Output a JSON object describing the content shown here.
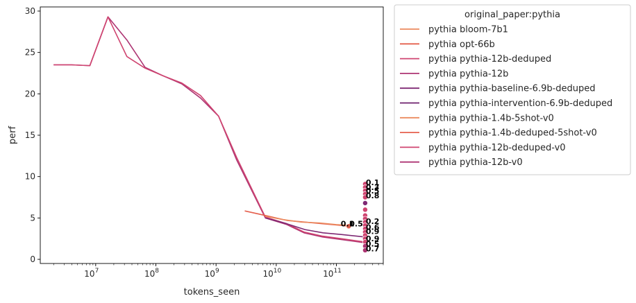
{
  "chart_data": {
    "type": "line",
    "xlabel": "tokens_seen",
    "ylabel": "perf",
    "xscale": "log",
    "xlim": [
      1200000.0,
      600000000000.0
    ],
    "ylim": [
      -0.5,
      30.5
    ],
    "yticks": [
      0,
      5,
      10,
      15,
      20,
      25,
      30
    ],
    "xticks": [
      {
        "value": 10000000.0,
        "base": "10",
        "exp": "7"
      },
      {
        "value": 100000000.0,
        "base": "10",
        "exp": "8"
      },
      {
        "value": 1000000000.0,
        "base": "10",
        "exp": "9"
      },
      {
        "value": 10000000000.0,
        "base": "10",
        "exp": "10"
      },
      {
        "value": 100000000000.0,
        "base": "10",
        "exp": "11"
      }
    ],
    "grid": false,
    "legend": {
      "title": "original_paper:pythia",
      "placement": "outside-right",
      "entries": [
        {
          "label": "pythia bloom-7b1",
          "color": "#eb8a5e"
        },
        {
          "label": "pythia opt-66b",
          "color": "#e5604e"
        },
        {
          "label": "pythia pythia-12b-deduped",
          "color": "#cf4470"
        },
        {
          "label": "pythia pythia-12b",
          "color": "#ad3573"
        },
        {
          "label": "pythia pythia-baseline-6.9b-deduped",
          "color": "#7e2974"
        },
        {
          "label": "pythia pythia-intervention-6.9b-deduped",
          "color": "#6d1f6d"
        },
        {
          "label": "pythia pythia-1.4b-5shot-v0",
          "color": "#eb8a5e"
        },
        {
          "label": "pythia pythia-1.4b-deduped-5shot-v0",
          "color": "#e5604e"
        },
        {
          "label": "pythia pythia-12b-deduped-v0",
          "color": "#cf4470"
        },
        {
          "label": "pythia pythia-12b-v0",
          "color": "#ad3573"
        }
      ]
    },
    "series": [
      {
        "color": "#ad3573",
        "x": [
          2000000.0,
          4000000.0,
          8000000.0,
          16000000.0,
          33000000.0,
          66000000.0,
          130000000.0,
          270000000.0,
          550000000.0,
          1100000000.0,
          2200000000.0,
          6600000000.0,
          15000000000.0,
          29000000000.0,
          59000000000.0,
          120000000000.0,
          300000000000.0
        ],
        "y": [
          23.5,
          23.5,
          23.4,
          29.3,
          26.5,
          23.2,
          22.2,
          21.2,
          19.5,
          17.3,
          12.0,
          5.0,
          4.2,
          3.2,
          2.7,
          2.4,
          2.0
        ]
      },
      {
        "color": "#cf4470",
        "x": [
          2000000.0,
          4000000.0,
          8000000.0,
          16000000.0,
          33000000.0,
          66000000.0,
          130000000.0,
          270000000.0,
          550000000.0,
          1100000000.0,
          2200000000.0,
          6600000000.0,
          15000000000.0,
          29000000000.0,
          59000000000.0,
          120000000000.0,
          300000000000.0
        ],
        "y": [
          23.5,
          23.5,
          23.4,
          29.3,
          24.5,
          23.1,
          22.2,
          21.3,
          19.8,
          17.3,
          12.3,
          5.1,
          4.3,
          3.3,
          2.8,
          2.5,
          2.1
        ]
      },
      {
        "color": "#e5604e",
        "x": [
          3000000000.0,
          6600000000.0,
          15000000000.0,
          30000000000.0,
          59000000000.0,
          120000000000.0,
          160000000000.0
        ],
        "y": [
          5.85,
          5.3,
          4.7,
          4.5,
          4.3,
          4.1,
          4.0
        ]
      },
      {
        "color": "#eb8a5e",
        "x": [
          6600000000.0,
          13000000000.0,
          26000000000.0,
          52000000000.0,
          100000000000.0,
          170000000000.0
        ],
        "y": [
          5.2,
          4.8,
          4.5,
          4.4,
          4.2,
          4.1
        ]
      },
      {
        "color": "#7e2974",
        "x": [
          6600000000.0,
          15000000000.0,
          30000000000.0,
          60000000000.0,
          120000000000.0,
          300000000000.0
        ],
        "y": [
          5.0,
          4.3,
          3.6,
          3.2,
          3.0,
          2.7
        ]
      }
    ],
    "points": [
      {
        "x": 300000000000.0,
        "y": 9.1,
        "color": "#cf4470"
      },
      {
        "x": 300000000000.0,
        "y": 8.7,
        "color": "#cf4470"
      },
      {
        "x": 300000000000.0,
        "y": 8.3,
        "color": "#cf4470"
      },
      {
        "x": 300000000000.0,
        "y": 7.9,
        "color": "#cf4470"
      },
      {
        "x": 300000000000.0,
        "y": 7.5,
        "color": "#cf4470"
      },
      {
        "x": 300000000000.0,
        "y": 6.8,
        "color": "#7e2974"
      },
      {
        "x": 300000000000.0,
        "y": 6.0,
        "color": "#cf4470"
      },
      {
        "x": 300000000000.0,
        "y": 5.3,
        "color": "#cf4470"
      },
      {
        "x": 300000000000.0,
        "y": 4.9,
        "color": "#cf4470"
      },
      {
        "x": 300000000000.0,
        "y": 4.5,
        "color": "#cf4470"
      },
      {
        "x": 300000000000.0,
        "y": 4.1,
        "color": "#cf4470"
      },
      {
        "x": 300000000000.0,
        "y": 3.7,
        "color": "#cf4470"
      },
      {
        "x": 300000000000.0,
        "y": 3.3,
        "color": "#cf4470"
      },
      {
        "x": 300000000000.0,
        "y": 2.9,
        "color": "#cf4470"
      },
      {
        "x": 300000000000.0,
        "y": 2.5,
        "color": "#cf4470"
      },
      {
        "x": 300000000000.0,
        "y": 2.1,
        "color": "#cf4470"
      },
      {
        "x": 300000000000.0,
        "y": 1.6,
        "color": "#ad3573"
      },
      {
        "x": 300000000000.0,
        "y": 1.1,
        "color": "#ad3573"
      },
      {
        "x": 160000000000.0,
        "y": 4.0,
        "color": "#e5604e"
      }
    ],
    "annotations": [
      {
        "x": 300000000000.0,
        "y": 9.3,
        "text": "0.1"
      },
      {
        "x": 300000000000.0,
        "y": 8.7,
        "text": "0.3"
      },
      {
        "x": 300000000000.0,
        "y": 8.3,
        "text": "0.5"
      },
      {
        "x": 300000000000.0,
        "y": 7.7,
        "text": "0.8"
      },
      {
        "x": 300000000000.0,
        "y": 4.6,
        "text": "0.2"
      },
      {
        "x": 115000000000.0,
        "y": 4.3,
        "text": "0.1"
      },
      {
        "x": 160000000000.0,
        "y": 4.3,
        "text": "0.5"
      },
      {
        "x": 300000000000.0,
        "y": 3.9,
        "text": "0.6"
      },
      {
        "x": 300000000000.0,
        "y": 3.4,
        "text": "0.9"
      },
      {
        "x": 300000000000.0,
        "y": 2.5,
        "text": "0.9"
      },
      {
        "x": 300000000000.0,
        "y": 1.9,
        "text": "0.5"
      },
      {
        "x": 300000000000.0,
        "y": 1.3,
        "text": "0.7"
      }
    ]
  }
}
